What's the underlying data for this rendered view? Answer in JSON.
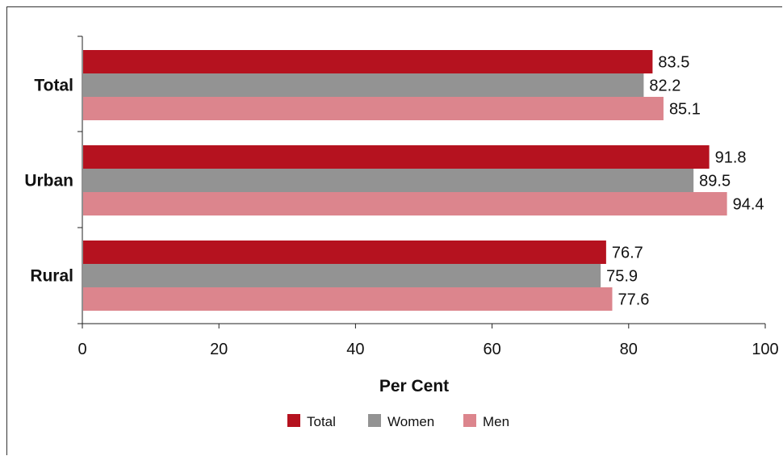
{
  "chart_data": {
    "type": "bar",
    "orientation": "horizontal",
    "categories": [
      "Total",
      "Urban",
      "Rural"
    ],
    "series": [
      {
        "name": "Total",
        "values": [
          83.5,
          91.8,
          76.7
        ]
      },
      {
        "name": "Women",
        "values": [
          82.2,
          89.5,
          75.9
        ]
      },
      {
        "name": "Men",
        "values": [
          85.1,
          94.4,
          77.6
        ]
      }
    ],
    "xlabel": "Per Cent",
    "xlim": [
      0,
      100
    ],
    "xticks": [
      0,
      20,
      40,
      60,
      80,
      100
    ],
    "legend": "bottom-center",
    "grid": false,
    "data_labels": true
  },
  "colors": {
    "Total": "#b5121f",
    "Women": "#939393",
    "Men": "#dc858d"
  }
}
